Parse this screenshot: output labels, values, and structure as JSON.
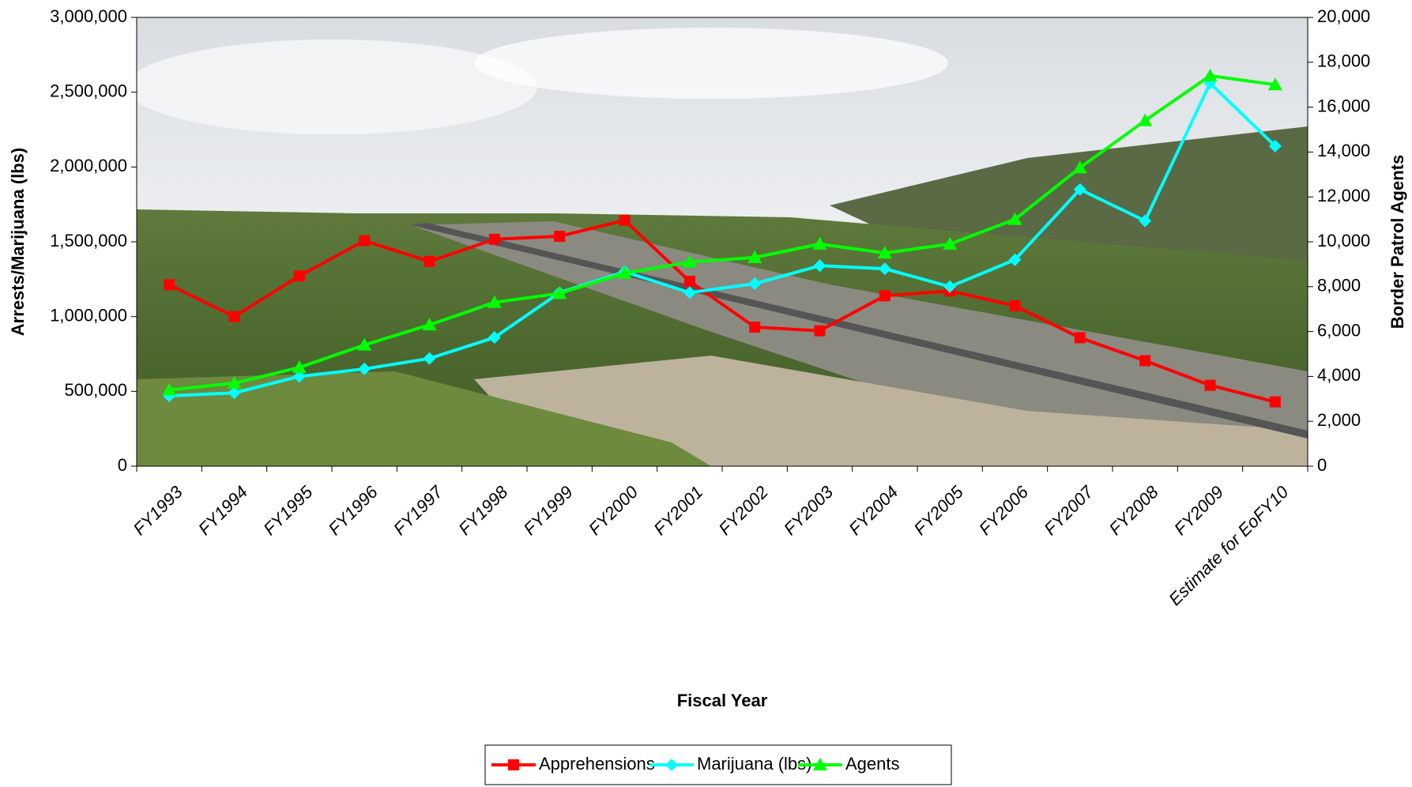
{
  "chart_data": {
    "type": "line",
    "x_label": "Fiscal Year",
    "y_label": "Arrests/Marijuana (lbs)",
    "y2_label": "Border Patrol Agents",
    "categories": [
      "FY1993",
      "FY1994",
      "FY1995",
      "FY1996",
      "FY1997",
      "FY1998",
      "FY1999",
      "FY2000",
      "FY2001",
      "FY2002",
      "FY2003",
      "FY2004",
      "FY2005",
      "FY2006",
      "FY2007",
      "FY2008",
      "FY2009",
      "Estimate for EoFY10"
    ],
    "series": [
      {
        "name": "Apprehensions",
        "color": "#ff0000",
        "marker": "square",
        "values": [
          1212886,
          999890,
          1271390,
          1507020,
          1368707,
          1516680,
          1537000,
          1643679,
          1235718,
          929809,
          905065,
          1139282,
          1171396,
          1071972,
          858638,
          705005,
          540865,
          430000
        ]
      },
      {
        "name": "Marijuana (lbs)",
        "color": "#00ffff",
        "marker": "diamond",
        "values": [
          470000,
          490000,
          600000,
          650000,
          720000,
          860000,
          1160000,
          1300000,
          1160000,
          1220000,
          1340000,
          1320000,
          1200000,
          1380000,
          1850000,
          1640000,
          2560000,
          2140000
        ]
      },
      {
        "name": "Agents",
        "color": "#00ff00",
        "marker": "triangle",
        "axis": "y2",
        "values": [
          3400,
          3700,
          4400,
          5400,
          6300,
          7300,
          7700,
          8600,
          9100,
          9300,
          9900,
          9500,
          9900,
          11000,
          13300,
          15400,
          17400,
          17000
        ]
      }
    ],
    "ylim": [
      0,
      3000000
    ],
    "yticks": [
      0,
      {
        "value": 500000,
        "label": "500,000"
      },
      {
        "value": 1000000,
        "label": "1,000,000"
      },
      {
        "value": 1500000,
        "label": "1,500,000"
      },
      {
        "value": 2000000,
        "label": "2,000,000"
      },
      {
        "value": 2500000,
        "label": "2,500,000"
      },
      {
        "value": 3000000,
        "label": "3,000,000"
      }
    ],
    "y2lim": [
      0,
      20000
    ],
    "y2ticks": [
      0,
      {
        "value": 2000,
        "label": "2,000"
      },
      {
        "value": 4000,
        "label": "4,000"
      },
      {
        "value": 6000,
        "label": "6,000"
      },
      {
        "value": 8000,
        "label": "8,000"
      },
      {
        "value": 10000,
        "label": "10,000"
      },
      {
        "value": 12000,
        "label": "12,000"
      },
      {
        "value": 14000,
        "label": "14,000"
      },
      {
        "value": 16000,
        "label": "16,000"
      },
      {
        "value": 18000,
        "label": "18,000"
      },
      {
        "value": 20000,
        "label": "20,000"
      }
    ],
    "legend": "bottom"
  }
}
